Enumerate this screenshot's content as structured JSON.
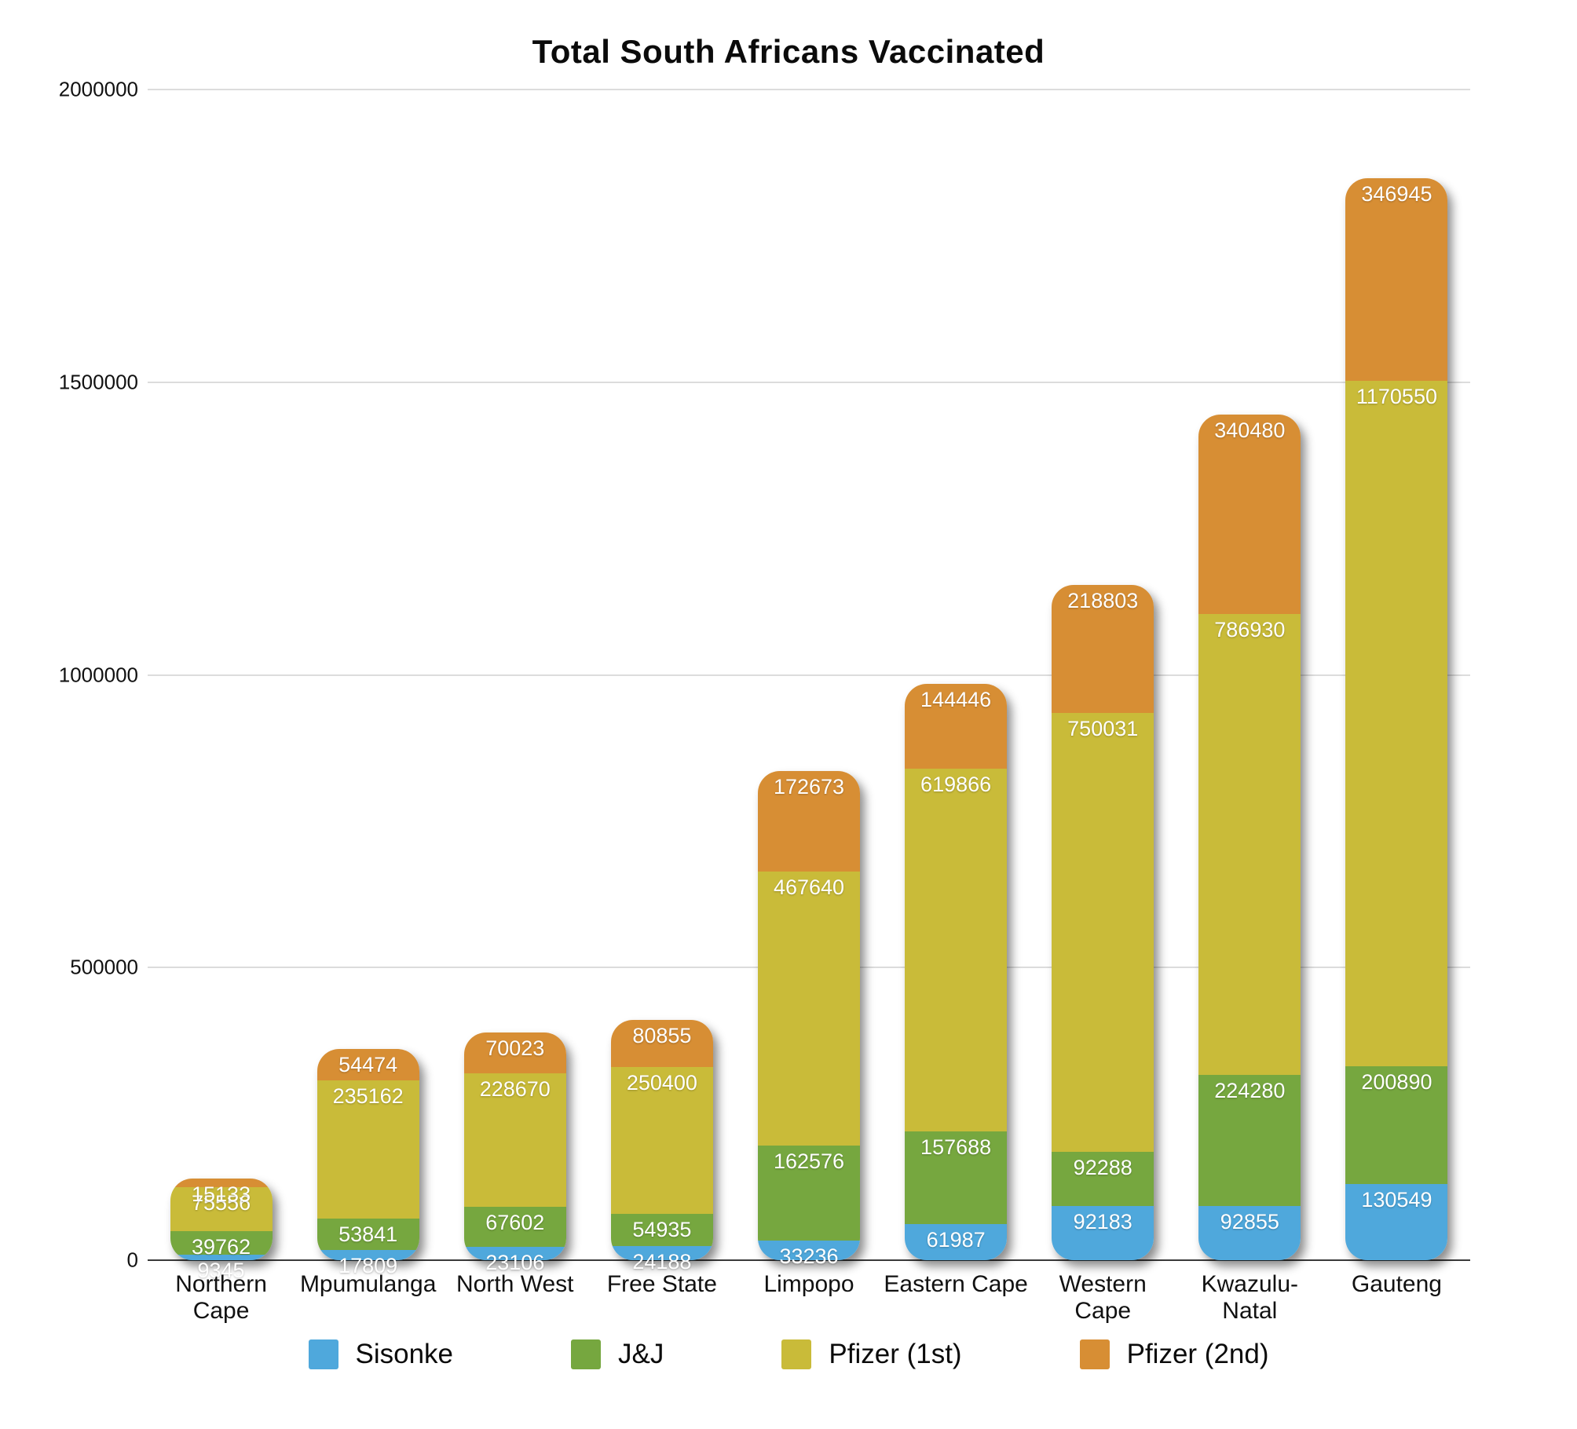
{
  "chart_data": {
    "type": "bar",
    "stacked": true,
    "title": "Total South Africans Vaccinated",
    "categories": [
      "Northern Cape",
      "Mpumulanga",
      "North West",
      "Free State",
      "Limpopo",
      "Eastern Cape",
      "Western Cape",
      "Kwazulu-Natal",
      "Gauteng"
    ],
    "series": [
      {
        "name": "Sisonke",
        "color": "#4fa8dc",
        "values": [
          9345,
          17809,
          23106,
          24188,
          33236,
          61987,
          92183,
          92855,
          130549
        ]
      },
      {
        "name": "J&J",
        "color": "#76a73f",
        "values": [
          39762,
          53841,
          67602,
          54935,
          162576,
          157688,
          92288,
          224280,
          200890
        ]
      },
      {
        "name": "Pfizer (1st)",
        "color": "#c9bb39",
        "values": [
          75556,
          235162,
          228670,
          250400,
          467640,
          619866,
          750031,
          786930,
          1170550
        ]
      },
      {
        "name": "Pfizer (2nd)",
        "color": "#d78e34",
        "values": [
          15133,
          54474,
          70023,
          80855,
          172673,
          144446,
          218803,
          340480,
          346945
        ]
      }
    ],
    "ylim": [
      0,
      2000000
    ],
    "yticks": [
      0,
      500000,
      1000000,
      1500000,
      2000000
    ],
    "grid": true,
    "legend_position": "bottom",
    "value_label_color": "#ffffff",
    "axis_text_color": "#111111"
  }
}
